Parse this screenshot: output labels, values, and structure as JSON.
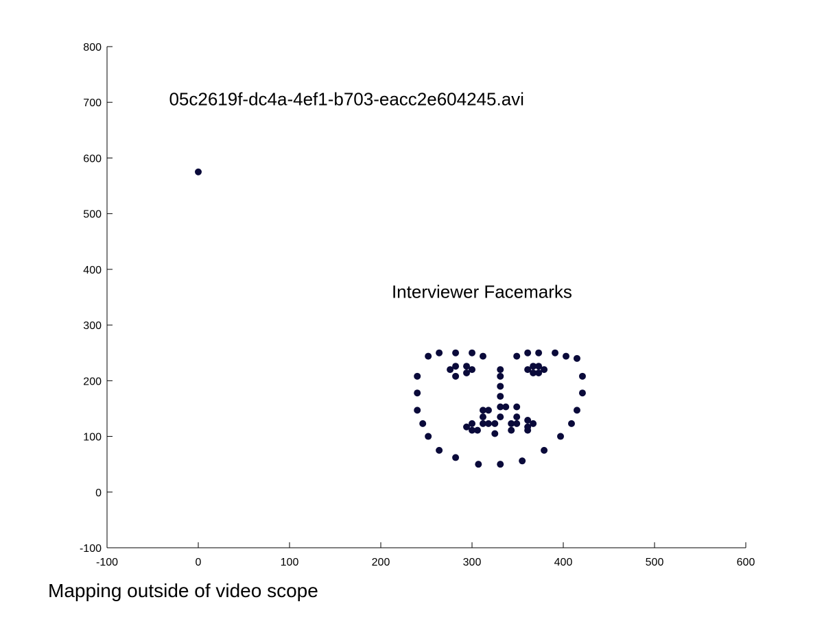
{
  "caption": "Mapping outside of video scope",
  "colors": {
    "marker": "#0a0a3a",
    "axis": "#000000",
    "background": "#ffffff"
  },
  "chart_data": {
    "type": "scatter",
    "title": "",
    "xlabel": "",
    "ylabel": "",
    "xlim": [
      -100,
      600
    ],
    "ylim": [
      -100,
      800
    ],
    "xticks": [
      -100,
      0,
      100,
      200,
      300,
      400,
      500,
      600
    ],
    "yticks": [
      -100,
      0,
      100,
      200,
      300,
      400,
      500,
      600,
      700,
      800
    ],
    "grid": false,
    "annotations": [
      {
        "text": "05c2619f-dc4a-4ef1-b703-eacc2e604245.avi",
        "x": -32,
        "y": 695
      },
      {
        "text": "Interviewer Facemarks",
        "x": 212,
        "y": 349
      }
    ],
    "series": [
      {
        "marker": "filled-circle",
        "points": [
          [
            0,
            575
          ],
          [
            240,
            208
          ],
          [
            240,
            178
          ],
          [
            240,
            147
          ],
          [
            246,
            123
          ],
          [
            252,
            100
          ],
          [
            264,
            75
          ],
          [
            282,
            62
          ],
          [
            307,
            50
          ],
          [
            331,
            50
          ],
          [
            355,
            56
          ],
          [
            379,
            75
          ],
          [
            397,
            100
          ],
          [
            409,
            123
          ],
          [
            415,
            147
          ],
          [
            421,
            178
          ],
          [
            421,
            208
          ],
          [
            252,
            244
          ],
          [
            264,
            250
          ],
          [
            282,
            250
          ],
          [
            300,
            250
          ],
          [
            312,
            244
          ],
          [
            349,
            244
          ],
          [
            361,
            250
          ],
          [
            373,
            250
          ],
          [
            391,
            250
          ],
          [
            403,
            244
          ],
          [
            415,
            240
          ],
          [
            331,
            220
          ],
          [
            331,
            208
          ],
          [
            331,
            190
          ],
          [
            331,
            172
          ],
          [
            312,
            147
          ],
          [
            318,
            147
          ],
          [
            331,
            153
          ],
          [
            337,
            153
          ],
          [
            349,
            153
          ],
          [
            276,
            220
          ],
          [
            282,
            226
          ],
          [
            294,
            226
          ],
          [
            300,
            220
          ],
          [
            294,
            214
          ],
          [
            282,
            208
          ],
          [
            361,
            220
          ],
          [
            367,
            226
          ],
          [
            373,
            226
          ],
          [
            379,
            220
          ],
          [
            373,
            214
          ],
          [
            367,
            214
          ],
          [
            294,
            117
          ],
          [
            300,
            123
          ],
          [
            312,
            123
          ],
          [
            318,
            123
          ],
          [
            325,
            123
          ],
          [
            343,
            123
          ],
          [
            349,
            123
          ],
          [
            367,
            123
          ],
          [
            361,
            129
          ],
          [
            349,
            135
          ],
          [
            331,
            135
          ],
          [
            312,
            135
          ],
          [
            300,
            111
          ],
          [
            306,
            111
          ],
          [
            325,
            105
          ],
          [
            343,
            111
          ],
          [
            361,
            111
          ],
          [
            361,
            117
          ]
        ]
      }
    ]
  }
}
